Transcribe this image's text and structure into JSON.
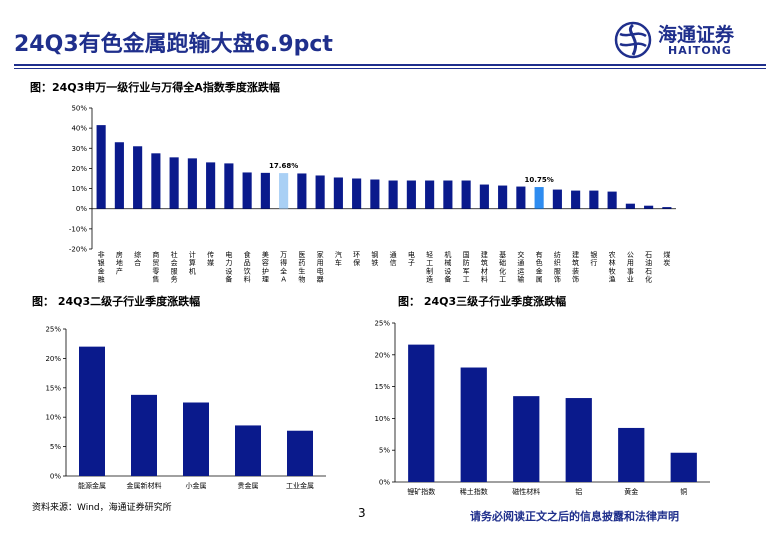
{
  "header": {
    "title": "24Q3有色金属跑输大盘6.9pct",
    "logo_cn": "海通证券",
    "logo_en": "HAITONG"
  },
  "colors": {
    "brand": "#1f2f8c",
    "bar": "#0a1a8c",
    "highlight_light": "#a9d0f5",
    "highlight_mid": "#2e8cf0"
  },
  "chart_data": [
    {
      "type": "bar",
      "title": "图：24Q3申万一级行业与万得全A指数季度涨跌幅",
      "ylim": [
        -20,
        50
      ],
      "yticks": [
        "50%",
        "40%",
        "30%",
        "20%",
        "10%",
        "0%",
        "-10%",
        "-20%"
      ],
      "grid": false,
      "categories": [
        "非银金融",
        "房地产",
        "综合",
        "商贸零售",
        "社会服务",
        "计算机",
        "传媒",
        "电力设备",
        "食品饮料",
        "美容护理",
        "万得全A",
        "医药生物",
        "家用电器",
        "汽车",
        "环保",
        "钢铁",
        "通信",
        "电子",
        "轻工制造",
        "机械设备",
        "国防军工",
        "建筑材料",
        "基础化工",
        "交通运输",
        "有色金属",
        "纺织服饰",
        "建筑装饰",
        "银行",
        "农林牧渔",
        "公用事业",
        "石油石化",
        "煤炭"
      ],
      "values": [
        41.5,
        33,
        31,
        27.5,
        25.5,
        25,
        23,
        22.5,
        18,
        17.8,
        17.68,
        17.5,
        16.5,
        15.5,
        15,
        14.5,
        14,
        14,
        14,
        14,
        14,
        12,
        11.5,
        11,
        10.75,
        9.5,
        9,
        9,
        8.5,
        2.5,
        1.5,
        0.8
      ],
      "highlights": {
        "万得全A": "light",
        "有色金属": "mid"
      },
      "data_labels": [
        {
          "category": "万得全A",
          "text": "17.68%"
        },
        {
          "category": "有色金属",
          "text": "10.75%"
        }
      ]
    },
    {
      "type": "bar",
      "title": "图： 24Q3二级子行业季度涨跌幅",
      "ylim": [
        0,
        25
      ],
      "yticks": [
        "25%",
        "20%",
        "15%",
        "10%",
        "5%",
        "0%"
      ],
      "grid": false,
      "categories": [
        "能源金属",
        "金属新材料",
        "小金属",
        "贵金属",
        "工业金属"
      ],
      "values": [
        22,
        13.8,
        12.5,
        8.6,
        7.7
      ]
    },
    {
      "type": "bar",
      "title": "图： 24Q3三级子行业季度涨跌幅",
      "ylim": [
        0,
        25
      ],
      "yticks": [
        "25%",
        "20%",
        "15%",
        "10%",
        "5%",
        "0%"
      ],
      "grid": false,
      "categories": [
        "锂矿指数",
        "稀土指数",
        "磁性材料",
        "铝",
        "黄金",
        "铜"
      ],
      "values": [
        21.6,
        18,
        13.5,
        13.2,
        8.5,
        4.6
      ]
    }
  ],
  "footer": {
    "source": "资料来源：Wind，海通证券研究所",
    "page": "3",
    "disclaimer": "请务必阅读正文之后的信息披露和法律声明"
  }
}
